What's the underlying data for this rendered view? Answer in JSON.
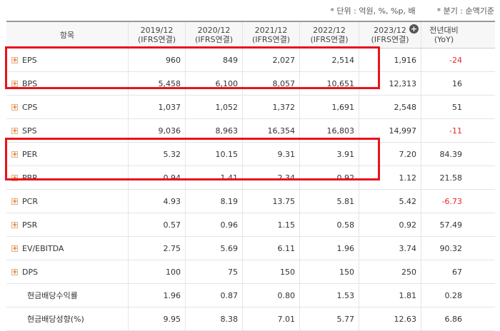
{
  "notes": {
    "unit": "* 단위 : 억원, %, %p, 배",
    "period": "* 분기 : 순액기준"
  },
  "headers": {
    "label": "항목",
    "years": [
      {
        "year": "2019/12",
        "basis": "(IFRS연결)"
      },
      {
        "year": "2020/12",
        "basis": "(IFRS연결)"
      },
      {
        "year": "2021/12",
        "basis": "(IFRS연결)"
      },
      {
        "year": "2022/12",
        "basis": "(IFRS연결)"
      },
      {
        "year": "2023/12",
        "basis": "(IFRS연결)"
      }
    ],
    "yoy_line1": "전년대비",
    "yoy_line2": "(YoY)"
  },
  "rows": [
    {
      "label": "EPS",
      "expandable": true,
      "values": [
        "960",
        "849",
        "2,027",
        "2,514",
        "1,916"
      ],
      "yoy": "-24",
      "yoy_negative": true
    },
    {
      "label": "BPS",
      "expandable": true,
      "values": [
        "5,458",
        "6,100",
        "8,057",
        "10,651",
        "12,313"
      ],
      "yoy": "16",
      "yoy_negative": false
    },
    {
      "label": "CPS",
      "expandable": true,
      "values": [
        "1,037",
        "1,052",
        "1,372",
        "1,691",
        "2,548"
      ],
      "yoy": "51",
      "yoy_negative": false
    },
    {
      "label": "SPS",
      "expandable": true,
      "values": [
        "9,036",
        "8,963",
        "16,354",
        "16,803",
        "14,997"
      ],
      "yoy": "-11",
      "yoy_negative": true
    },
    {
      "label": "PER",
      "expandable": true,
      "values": [
        "5.32",
        "10.15",
        "9.31",
        "3.91",
        "7.20"
      ],
      "yoy": "84.39",
      "yoy_negative": false
    },
    {
      "label": "PBR",
      "expandable": true,
      "values": [
        "0.94",
        "1.41",
        "2.34",
        "0.92",
        "1.12"
      ],
      "yoy": "21.58",
      "yoy_negative": false
    },
    {
      "label": "PCR",
      "expandable": true,
      "values": [
        "4.93",
        "8.19",
        "13.75",
        "5.81",
        "5.42"
      ],
      "yoy": "-6.73",
      "yoy_negative": true
    },
    {
      "label": "PSR",
      "expandable": true,
      "values": [
        "0.57",
        "0.96",
        "1.15",
        "0.58",
        "0.92"
      ],
      "yoy": "57.49",
      "yoy_negative": false
    },
    {
      "label": "EV/EBITDA",
      "expandable": true,
      "values": [
        "2.75",
        "5.69",
        "6.11",
        "1.96",
        "3.74"
      ],
      "yoy": "90.32",
      "yoy_negative": false
    },
    {
      "label": "DPS",
      "expandable": true,
      "values": [
        "100",
        "75",
        "150",
        "150",
        "250"
      ],
      "yoy": "67",
      "yoy_negative": false
    },
    {
      "label": "현금배당수익률",
      "expandable": false,
      "values": [
        "1.96",
        "0.87",
        "0.80",
        "1.53",
        "1.81"
      ],
      "yoy": "0.28",
      "yoy_negative": false
    },
    {
      "label": "현금배당성향(%)",
      "expandable": false,
      "values": [
        "9.95",
        "8.38",
        "7.01",
        "5.77",
        "12.63"
      ],
      "yoy": "6.86",
      "yoy_negative": false
    }
  ],
  "colors": {
    "highlight": "#e8131b",
    "negative": "#e8262a"
  }
}
